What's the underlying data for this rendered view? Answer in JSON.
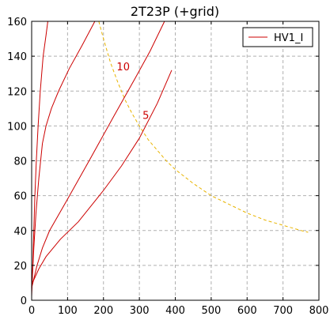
{
  "chart_data": {
    "type": "line",
    "title": "2T23P (+grid)",
    "xlabel": "",
    "ylabel": "",
    "xlim": [
      0,
      800
    ],
    "ylim": [
      0,
      160
    ],
    "xticks": [
      0,
      100,
      200,
      300,
      400,
      500,
      600,
      700,
      800
    ],
    "yticks": [
      0,
      20,
      40,
      60,
      80,
      100,
      120,
      140,
      160
    ],
    "grid": true,
    "legend": {
      "position": "top-right",
      "entries": [
        "HV1_I"
      ]
    },
    "colors": {
      "curves": "#cc0000",
      "power_limit": "#e8b400",
      "grid": "#b0b0b0"
    },
    "series": [
      {
        "name": "HV1_I",
        "points": [
          [
            0,
            2
          ],
          [
            3,
            20
          ],
          [
            6,
            40
          ],
          [
            9,
            60
          ],
          [
            13,
            80
          ],
          [
            18,
            100
          ],
          [
            24,
            120
          ],
          [
            32,
            140
          ],
          [
            40,
            152
          ],
          [
            45,
            160
          ]
        ]
      },
      {
        "points": [
          [
            0,
            5
          ],
          [
            6,
            30
          ],
          [
            12,
            50
          ],
          [
            20,
            70
          ],
          [
            30,
            90
          ],
          [
            40,
            100
          ],
          [
            55,
            110
          ],
          [
            75,
            120
          ],
          [
            105,
            133
          ],
          [
            140,
            146
          ],
          [
            176,
            160
          ]
        ]
      },
      {
        "points": [
          [
            0,
            7
          ],
          [
            15,
            20
          ],
          [
            30,
            30
          ],
          [
            50,
            40
          ],
          [
            100,
            58
          ],
          [
            160,
            80
          ],
          [
            230,
            106
          ],
          [
            290,
            128
          ],
          [
            330,
            143
          ],
          [
            370,
            160
          ]
        ]
      },
      {
        "points": [
          [
            0,
            9
          ],
          [
            20,
            18
          ],
          [
            40,
            25
          ],
          [
            80,
            35
          ],
          [
            130,
            45
          ],
          [
            200,
            63
          ],
          [
            250,
            77
          ],
          [
            300,
            93
          ],
          [
            350,
            113
          ],
          [
            390,
            132
          ]
        ]
      }
    ],
    "power_limit_curve": {
      "points": [
        [
          187,
          160
        ],
        [
          200,
          150
        ],
        [
          220,
          136
        ],
        [
          240,
          125
        ],
        [
          260,
          115
        ],
        [
          280,
          107
        ],
        [
          300,
          100
        ],
        [
          325,
          92
        ],
        [
          350,
          86
        ],
        [
          375,
          80
        ],
        [
          400,
          75
        ],
        [
          450,
          67
        ],
        [
          500,
          60
        ],
        [
          550,
          55
        ],
        [
          600,
          50
        ],
        [
          650,
          46
        ],
        [
          700,
          43
        ],
        [
          750,
          40
        ],
        [
          770,
          39
        ]
      ]
    },
    "annotations": [
      {
        "text": "10",
        "x": 255,
        "y": 132
      },
      {
        "text": "5",
        "x": 318,
        "y": 104
      }
    ]
  }
}
